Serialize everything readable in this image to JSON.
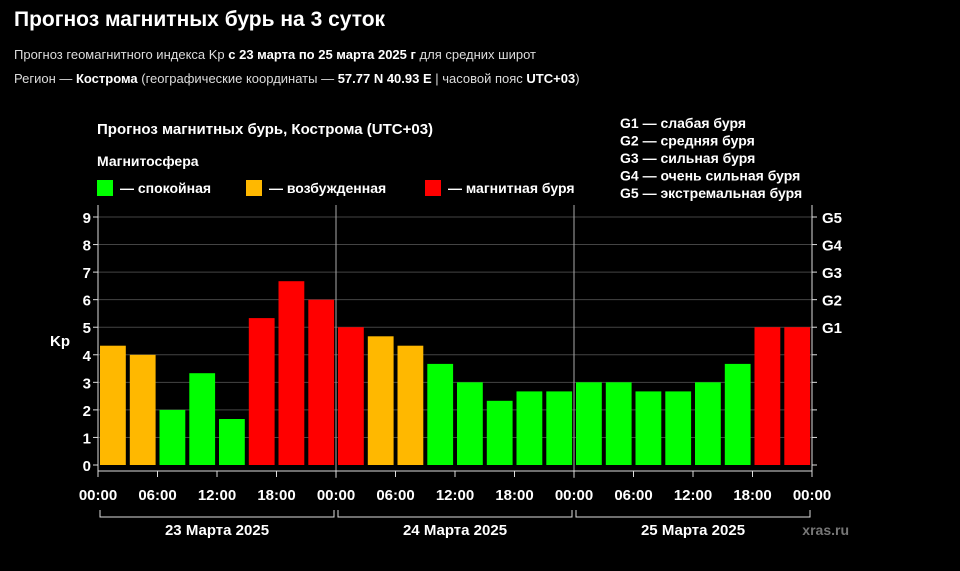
{
  "header": {
    "title": "Прогноз магнитных бурь на 3 суток",
    "line1_a": "Прогноз геомагнитного индекса Kp ",
    "line1_b": "с 23 марта по 25 марта 2025 г",
    "line1_c": " для средних широт",
    "line2_a": "Регион — ",
    "line2_b": "Кострома",
    "line2_c": " (географические координаты — ",
    "line2_d": "57.77 N 40.93 E",
    "line2_e": " | часовой пояс ",
    "line2_f": "UTC+03",
    "line2_g": ")"
  },
  "chart_data": {
    "type": "bar",
    "title": "Прогноз магнитных бурь, Кострома (UTC+03)",
    "legend_title": "Магнитосфера",
    "legend": [
      {
        "label": "— спокойная",
        "color": "#00ff00"
      },
      {
        "label": "— возбужденная",
        "color": "#ffb800"
      },
      {
        "label": "— магнитная буря",
        "color": "#ff0000"
      }
    ],
    "storm_scale": [
      "G1 — слабая буря",
      "G2 — средняя буря",
      "G3 — сильная буря",
      "G4 — очень сильная буря",
      "G5 — экстремальная буря"
    ],
    "ylabel": "Kp",
    "ylim": [
      0,
      9
    ],
    "y_ticks": [
      0,
      1,
      2,
      3,
      4,
      5,
      6,
      7,
      8,
      9
    ],
    "right_ticks": [
      {
        "kp": 5,
        "label": "G1"
      },
      {
        "kp": 6,
        "label": "G2"
      },
      {
        "kp": 7,
        "label": "G3"
      },
      {
        "kp": 8,
        "label": "G4"
      },
      {
        "kp": 9,
        "label": "G5"
      }
    ],
    "x_tick_labels": [
      "00:00",
      "06:00",
      "12:00",
      "18:00",
      "00:00",
      "06:00",
      "12:00",
      "18:00",
      "00:00",
      "06:00",
      "12:00",
      "18:00",
      "00:00"
    ],
    "days": [
      "23 Марта 2025",
      "24 Марта 2025",
      "25 Марта 2025"
    ],
    "values": [
      4.33,
      4.0,
      2.0,
      3.33,
      1.67,
      5.33,
      6.67,
      6.0,
      5.0,
      4.67,
      4.33,
      3.67,
      3.0,
      2.33,
      2.67,
      2.67,
      3.0,
      3.0,
      2.67,
      2.67,
      3.0,
      3.67,
      5.0,
      5.0
    ],
    "level": [
      "excited",
      "excited",
      "quiet",
      "quiet",
      "quiet",
      "storm",
      "storm",
      "storm",
      "storm",
      "excited",
      "excited",
      "quiet",
      "quiet",
      "quiet",
      "quiet",
      "quiet",
      "quiet",
      "quiet",
      "quiet",
      "quiet",
      "quiet",
      "quiet",
      "storm",
      "storm"
    ],
    "colors": {
      "quiet": "#00ff00",
      "excited": "#ffb800",
      "storm": "#ff0000",
      "grid": "#444444",
      "axis": "#dddddd",
      "day_divider": "#aaaaaa"
    },
    "watermark": "xras.ru"
  }
}
